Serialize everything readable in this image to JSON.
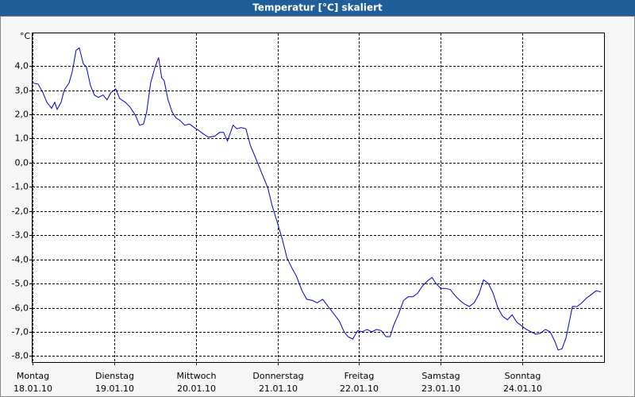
{
  "chart_data": {
    "type": "line",
    "title": "Temperatur [°C] skaliert",
    "y_label": "°C",
    "xlim": [
      0,
      7
    ],
    "ylim": [
      -8.25,
      5.35
    ],
    "grid": true,
    "xticks": [
      {
        "value": 0,
        "label": "Montag",
        "date": "18.01.10"
      },
      {
        "value": 1,
        "label": "Dienstag",
        "date": "19.01.10"
      },
      {
        "value": 2,
        "label": "Mittwoch",
        "date": "20.01.10"
      },
      {
        "value": 3,
        "label": "Donnerstag",
        "date": "21.01.10"
      },
      {
        "value": 4,
        "label": "Freitag",
        "date": "22.01.10"
      },
      {
        "value": 5,
        "label": "Samstag",
        "date": "23.01.10"
      },
      {
        "value": 6,
        "label": "Sonntag",
        "date": "24.01.10"
      }
    ],
    "yticks": [
      {
        "value": 4,
        "label": "4,0"
      },
      {
        "value": 3,
        "label": "3,0"
      },
      {
        "value": 2,
        "label": "2,0"
      },
      {
        "value": 1,
        "label": "1,0"
      },
      {
        "value": 0,
        "label": "0,0"
      },
      {
        "value": -1,
        "label": "-1,0"
      },
      {
        "value": -2,
        "label": "-2,0"
      },
      {
        "value": -3,
        "label": "-3,0"
      },
      {
        "value": -4,
        "label": "-4,0"
      },
      {
        "value": -5,
        "label": "-5,0"
      },
      {
        "value": -6,
        "label": "-6,0"
      },
      {
        "value": -7,
        "label": "-7,0"
      },
      {
        "value": -8,
        "label": "-8,0"
      }
    ],
    "color": "#0000c8",
    "x": [
      0,
      0.068,
      0.126,
      0.175,
      0.233,
      0.272,
      0.301,
      0.35,
      0.388,
      0.447,
      0.485,
      0.534,
      0.573,
      0.621,
      0.66,
      0.709,
      0.757,
      0.806,
      0.864,
      0.913,
      0.961,
      1.019,
      1.068,
      1.136,
      1.194,
      1.262,
      1.311,
      1.359,
      1.398,
      1.447,
      1.495,
      1.544,
      1.583,
      1.612,
      1.66,
      1.709,
      1.757,
      1.806,
      1.864,
      1.922,
      1.981,
      2.029,
      2.087,
      2.155,
      2.233,
      2.291,
      2.34,
      2.388,
      2.456,
      2.505,
      2.553,
      2.612,
      2.67,
      2.738,
      2.816,
      2.883,
      2.932,
      3.0,
      3.058,
      3.117,
      3.175,
      3.233,
      3.301,
      3.359,
      3.427,
      3.485,
      3.553,
      3.621,
      3.689,
      3.757,
      3.816,
      3.864,
      3.922,
      3.981,
      4.039,
      4.097,
      4.155,
      4.214,
      4.272,
      4.33,
      4.379,
      4.427,
      4.485,
      4.544,
      4.602,
      4.66,
      4.718,
      4.777,
      4.835,
      4.893,
      4.942,
      5.0,
      5.058,
      5.117,
      5.175,
      5.233,
      5.291,
      5.35,
      5.408,
      5.466,
      5.524,
      5.583,
      5.641,
      5.699,
      5.757,
      5.816,
      5.874,
      5.932,
      5.99,
      6.049,
      6.107,
      6.165,
      6.223,
      6.282,
      6.34,
      6.398,
      6.437,
      6.485,
      6.534,
      6.583,
      6.612,
      6.67,
      6.728,
      6.786,
      6.845,
      6.903,
      6.961
    ],
    "values": [
      3.3,
      3.25,
      2.9,
      2.5,
      2.25,
      2.5,
      2.2,
      2.5,
      3.0,
      3.3,
      3.75,
      4.65,
      4.75,
      4.1,
      3.95,
      3.2,
      2.8,
      2.7,
      2.8,
      2.6,
      2.9,
      3.05,
      2.65,
      2.5,
      2.3,
      1.95,
      1.55,
      1.6,
      2.1,
      3.3,
      3.9,
      4.35,
      3.5,
      3.4,
      2.6,
      2.1,
      1.85,
      1.75,
      1.55,
      1.6,
      1.45,
      1.35,
      1.2,
      1.05,
      1.1,
      1.25,
      1.25,
      0.9,
      1.55,
      1.4,
      1.45,
      1.4,
      0.7,
      0.15,
      -0.5,
      -1.05,
      -1.75,
      -2.5,
      -3.15,
      -3.95,
      -4.35,
      -4.7,
      -5.3,
      -5.65,
      -5.7,
      -5.8,
      -5.65,
      -5.95,
      -6.25,
      -6.55,
      -7.0,
      -7.2,
      -7.3,
      -6.95,
      -7.0,
      -6.9,
      -7.0,
      -6.9,
      -6.95,
      -7.2,
      -7.2,
      -6.7,
      -6.25,
      -5.7,
      -5.55,
      -5.55,
      -5.4,
      -5.1,
      -4.9,
      -4.75,
      -5.0,
      -5.2,
      -5.2,
      -5.25,
      -5.5,
      -5.7,
      -5.85,
      -5.95,
      -5.8,
      -5.45,
      -4.85,
      -5.0,
      -5.4,
      -6.0,
      -6.35,
      -6.5,
      -6.3,
      -6.6,
      -6.75,
      -6.9,
      -7.0,
      -7.1,
      -7.05,
      -6.9,
      -7.0,
      -7.4,
      -7.75,
      -7.7,
      -7.25,
      -6.45,
      -5.95,
      -5.95,
      -5.8,
      -5.6,
      -5.45,
      -5.3,
      -5.35
    ]
  }
}
